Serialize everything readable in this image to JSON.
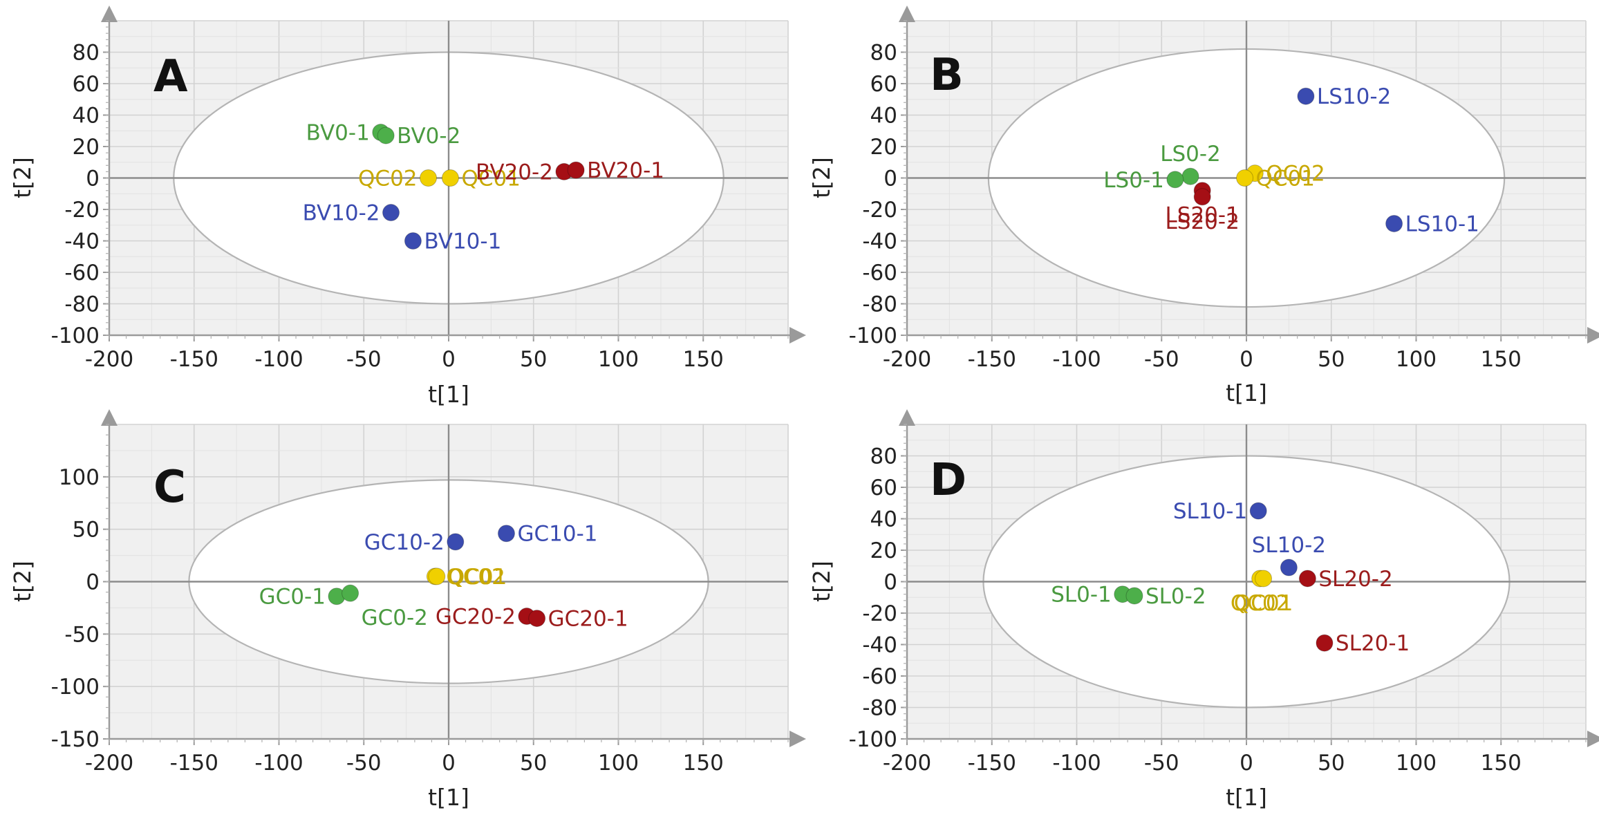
{
  "colors": {
    "green": "#4daf4a",
    "yellow": "#f0d000",
    "red": "#a50f15",
    "blue": "#3a4bb0",
    "green_text": "#4a9a40",
    "yellow_text": "#c8a800",
    "red_text": "#9b1c1c",
    "blue_text": "#3a4bb0"
  },
  "chart_data": [
    {
      "type": "scatter",
      "panel": "A",
      "xlabel": "t[1]",
      "ylabel": "t[2]",
      "xlim": [
        -200,
        200
      ],
      "ylim": [
        -100,
        100
      ],
      "xticks": [
        -200,
        -150,
        -100,
        -50,
        0,
        50,
        100,
        150
      ],
      "yticks": [
        -100,
        -80,
        -60,
        -40,
        -20,
        0,
        20,
        40,
        60,
        80
      ],
      "ellipse": {
        "a": 162,
        "b": 80
      },
      "points": [
        {
          "label": "BV0-1",
          "x": -40,
          "y": 29,
          "color": "green",
          "label_side": "left"
        },
        {
          "label": "BV0-2",
          "x": -37,
          "y": 27,
          "color": "green",
          "label_side": "right"
        },
        {
          "label": "QC02",
          "x": -12,
          "y": 0,
          "color": "yellow",
          "label_side": "left"
        },
        {
          "label": "QC01",
          "x": 1,
          "y": 0,
          "color": "yellow",
          "label_side": "right"
        },
        {
          "label": "BV20-2",
          "x": 68,
          "y": 4,
          "color": "red",
          "label_side": "left"
        },
        {
          "label": "BV20-1",
          "x": 75,
          "y": 5,
          "color": "red",
          "label_side": "right"
        },
        {
          "label": "BV10-2",
          "x": -34,
          "y": -22,
          "color": "blue",
          "label_side": "left"
        },
        {
          "label": "BV10-1",
          "x": -21,
          "y": -40,
          "color": "blue",
          "label_side": "right"
        }
      ]
    },
    {
      "type": "scatter",
      "panel": "B",
      "xlabel": "t[1]",
      "ylabel": "t[2]",
      "xlim": [
        -200,
        200
      ],
      "ylim": [
        -100,
        100
      ],
      "xticks": [
        -200,
        -150,
        -100,
        -50,
        0,
        50,
        100,
        150
      ],
      "yticks": [
        -100,
        -80,
        -60,
        -40,
        -20,
        0,
        20,
        40,
        60,
        80
      ],
      "ellipse": {
        "a": 152,
        "b": 82
      },
      "points": [
        {
          "label": "LS10-2",
          "x": 35,
          "y": 52,
          "color": "blue",
          "label_side": "right"
        },
        {
          "label": "LS0-2",
          "x": -33,
          "y": 1,
          "color": "green",
          "label_side": "above"
        },
        {
          "label": "LS0-1",
          "x": -42,
          "y": -1,
          "color": "green",
          "label_side": "left"
        },
        {
          "label": "QC02",
          "x": 5,
          "y": 3,
          "color": "yellow",
          "label_side": "right"
        },
        {
          "label": "QC01",
          "x": -1,
          "y": 0,
          "color": "yellow",
          "label_side": "right"
        },
        {
          "label": "LS20-1",
          "x": -26,
          "y": -8,
          "color": "red",
          "label_side": "below"
        },
        {
          "label": "LS20-2",
          "x": -26,
          "y": -12,
          "color": "red",
          "label_side": "below"
        },
        {
          "label": "LS10-1",
          "x": 87,
          "y": -29,
          "color": "blue",
          "label_side": "right"
        }
      ]
    },
    {
      "type": "scatter",
      "panel": "C",
      "xlabel": "t[1]",
      "ylabel": "t[2]",
      "xlim": [
        -200,
        200
      ],
      "ylim": [
        -150,
        150
      ],
      "xticks": [
        -200,
        -150,
        -100,
        -50,
        0,
        50,
        100,
        150
      ],
      "yticks": [
        -150,
        -100,
        -50,
        0,
        50,
        100
      ],
      "ellipse": {
        "a": 153,
        "b": 97
      },
      "points": [
        {
          "label": "GC10-2",
          "x": 4,
          "y": 38,
          "color": "blue",
          "label_side": "left"
        },
        {
          "label": "GC10-1",
          "x": 34,
          "y": 46,
          "color": "blue",
          "label_side": "right"
        },
        {
          "label": "QC02",
          "x": -8,
          "y": 5,
          "color": "yellow",
          "label_side": "right"
        },
        {
          "label": "QC01",
          "x": -7,
          "y": 5,
          "color": "yellow",
          "label_side": "right"
        },
        {
          "label": "GC0-1",
          "x": -66,
          "y": -14,
          "color": "green",
          "label_side": "left"
        },
        {
          "label": "GC0-2",
          "x": -58,
          "y": -11,
          "color": "green",
          "label_side": "below-right"
        },
        {
          "label": "GC20-2",
          "x": 46,
          "y": -33,
          "color": "red",
          "label_side": "left"
        },
        {
          "label": "GC20-1",
          "x": 52,
          "y": -35,
          "color": "red",
          "label_side": "right"
        }
      ]
    },
    {
      "type": "scatter",
      "panel": "D",
      "xlabel": "t[1]",
      "ylabel": "t[2]",
      "xlim": [
        -200,
        200
      ],
      "ylim": [
        -100,
        100
      ],
      "xticks": [
        -200,
        -150,
        -100,
        -50,
        0,
        50,
        100,
        150
      ],
      "yticks": [
        -100,
        -80,
        -60,
        -40,
        -20,
        0,
        20,
        40,
        60,
        80
      ],
      "ellipse": {
        "a": 155,
        "b": 80
      },
      "points": [
        {
          "label": "SL10-1",
          "x": 7,
          "y": 45,
          "color": "blue",
          "label_side": "left"
        },
        {
          "label": "SL10-2",
          "x": 25,
          "y": 9,
          "color": "blue",
          "label_side": "above"
        },
        {
          "label": "QC02",
          "x": 8,
          "y": 2,
          "color": "yellow",
          "label_side": "below"
        },
        {
          "label": "QC01",
          "x": 10,
          "y": 2,
          "color": "yellow",
          "label_side": "below"
        },
        {
          "label": "SL20-2",
          "x": 36,
          "y": 2,
          "color": "red",
          "label_side": "right"
        },
        {
          "label": "SL0-1",
          "x": -73,
          "y": -8,
          "color": "green",
          "label_side": "left"
        },
        {
          "label": "SL0-2",
          "x": -66,
          "y": -9,
          "color": "green",
          "label_side": "right"
        },
        {
          "label": "SL20-1",
          "x": 46,
          "y": -39,
          "color": "red",
          "label_side": "right"
        }
      ]
    }
  ]
}
